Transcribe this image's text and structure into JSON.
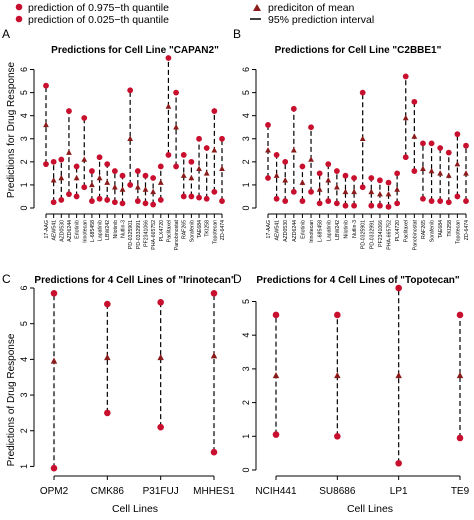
{
  "legend": {
    "items": [
      {
        "label": "prediction of 0.975−th quantile",
        "marker": "circle",
        "color": "#c8102e"
      },
      {
        "label": "prediction of 0.025−th quantile",
        "marker": "circle",
        "color": "#c8102e"
      },
      {
        "label": "prediciton of mean",
        "marker": "triangle",
        "color": "#8b1a1a"
      },
      {
        "label": "95% prediction interval",
        "marker": "dash",
        "color": "#000000"
      }
    ]
  },
  "colors": {
    "upper": "#c8102e",
    "lower": "#c8102e",
    "mean": "#8b1a1a",
    "interval": "#000000"
  },
  "chart_data": [
    {
      "panel_letter": "A",
      "type": "scatter",
      "title": "Predictions for Cell Line \"CAPAN2\"",
      "ylabel": "Predictions for Drug Response",
      "xlabel": "",
      "ylim": [
        0,
        6.5
      ],
      "yticks": [
        0,
        1,
        2,
        3,
        4,
        5,
        6
      ],
      "categories": [
        "17-AAG",
        "AEW541",
        "AZD0530",
        "AZD6244",
        "Erlotinib",
        "Irinotecan",
        "L-685458",
        "Lapatinib",
        "LBW242",
        "Nilotinib",
        "Nutlin-3",
        "PD-0325901",
        "PD-0332991",
        "PF2341066",
        "PHA-665752",
        "PLX4720",
        "Paclitaxel",
        "Panobinostat",
        "RAF265",
        "Sorafenib",
        "TAE684",
        "TKI258",
        "Topotecan",
        "ZD-6474"
      ],
      "series": [
        {
          "role": "upper",
          "values": [
            5.3,
            2.0,
            2.1,
            4.2,
            1.8,
            3.9,
            1.6,
            2.2,
            1.9,
            1.6,
            1.4,
            5.1,
            1.6,
            1.4,
            1.3,
            1.8,
            6.5,
            5.0,
            2.3,
            2.0,
            3.0,
            2.6,
            4.2,
            3.0
          ]
        },
        {
          "role": "mean",
          "values": [
            3.6,
            1.2,
            1.3,
            2.4,
            1.3,
            2.1,
            1.0,
            1.3,
            1.1,
            0.9,
            0.8,
            3.0,
            0.9,
            0.8,
            0.7,
            1.1,
            4.4,
            3.5,
            1.4,
            1.3,
            1.7,
            1.5,
            2.5,
            1.7
          ]
        },
        {
          "role": "lower",
          "values": [
            1.9,
            0.25,
            0.35,
            0.6,
            0.5,
            0.9,
            0.3,
            0.4,
            0.35,
            0.25,
            0.2,
            1.0,
            0.3,
            0.2,
            0.15,
            0.35,
            2.3,
            1.8,
            0.5,
            0.5,
            0.45,
            0.4,
            0.7,
            0.3
          ]
        }
      ]
    },
    {
      "panel_letter": "B",
      "type": "scatter",
      "title": "Predictions for Cell Line \"C2BBE1\"",
      "ylabel": "",
      "xlabel": "",
      "ylim": [
        0,
        6.5
      ],
      "yticks": [
        0,
        1,
        2,
        3,
        4,
        5,
        6
      ],
      "categories": [
        "17-AAG",
        "AEW541",
        "AZD0530",
        "AZD6244",
        "Erlotinib",
        "Irinotecan",
        "L-685458",
        "Lapatinib",
        "LBW242",
        "Nilotinib",
        "Nutlin-3",
        "PD-0325901",
        "PD-0332991",
        "PF2341066",
        "PHA-665752",
        "PLX4720",
        "Paclitaxel",
        "Panobinostat",
        "RAF265",
        "Sorafenib",
        "TAE684",
        "TKI258",
        "Topotecan",
        "ZD-6474"
      ],
      "series": [
        {
          "role": "upper",
          "values": [
            3.6,
            2.3,
            2.0,
            4.3,
            1.8,
            3.5,
            1.5,
            1.9,
            1.6,
            1.4,
            1.3,
            5.0,
            1.3,
            1.2,
            1.1,
            1.5,
            5.7,
            4.6,
            2.8,
            2.8,
            2.6,
            2.4,
            3.2,
            2.7
          ]
        },
        {
          "role": "mean",
          "values": [
            2.5,
            1.4,
            1.2,
            2.5,
            1.1,
            2.1,
            0.8,
            1.2,
            0.9,
            0.7,
            0.7,
            3.0,
            0.7,
            0.6,
            0.6,
            0.8,
            3.9,
            3.1,
            1.7,
            1.6,
            1.5,
            1.4,
            1.9,
            1.5
          ]
        },
        {
          "role": "lower",
          "values": [
            1.3,
            0.4,
            0.3,
            0.7,
            0.3,
            0.7,
            0.2,
            0.3,
            0.2,
            0.1,
            0.1,
            0.9,
            0.1,
            0.1,
            0.05,
            0.2,
            2.2,
            1.6,
            0.4,
            0.3,
            0.3,
            0.25,
            0.5,
            0.3
          ]
        }
      ]
    },
    {
      "panel_letter": "C",
      "type": "scatter",
      "title": "Predictions for 4 Cell Lines of \"Irinotecan\"",
      "ylabel": "Predictions of Drug Response",
      "xlabel": "Cell Lines",
      "ylim": [
        0.9,
        6.0
      ],
      "yticks": [
        1,
        2,
        3,
        4,
        5,
        6
      ],
      "categories": [
        "OPM2",
        "CMK86",
        "P31FUJ",
        "MHHES1"
      ],
      "series": [
        {
          "role": "upper",
          "values": [
            5.85,
            5.55,
            5.6,
            5.85
          ]
        },
        {
          "role": "mean",
          "values": [
            3.95,
            4.05,
            4.05,
            4.1
          ]
        },
        {
          "role": "lower",
          "values": [
            0.95,
            2.5,
            2.1,
            1.4
          ]
        }
      ]
    },
    {
      "panel_letter": "D",
      "type": "scatter",
      "title": "Predictions for 4 Cell Lines of \"Topotecan\"",
      "ylabel": "",
      "xlabel": "Cell Lines",
      "ylim": [
        0,
        5.4
      ],
      "yticks": [
        0,
        1,
        2,
        3,
        4,
        5
      ],
      "categories": [
        "NCIH441",
        "SU8686",
        "LP1",
        "TE9"
      ],
      "series": [
        {
          "role": "upper",
          "values": [
            4.6,
            4.6,
            5.4,
            4.6
          ]
        },
        {
          "role": "mean",
          "values": [
            2.8,
            2.8,
            2.8,
            2.8
          ]
        },
        {
          "role": "lower",
          "values": [
            1.05,
            1.0,
            0.2,
            0.95
          ]
        }
      ]
    }
  ]
}
